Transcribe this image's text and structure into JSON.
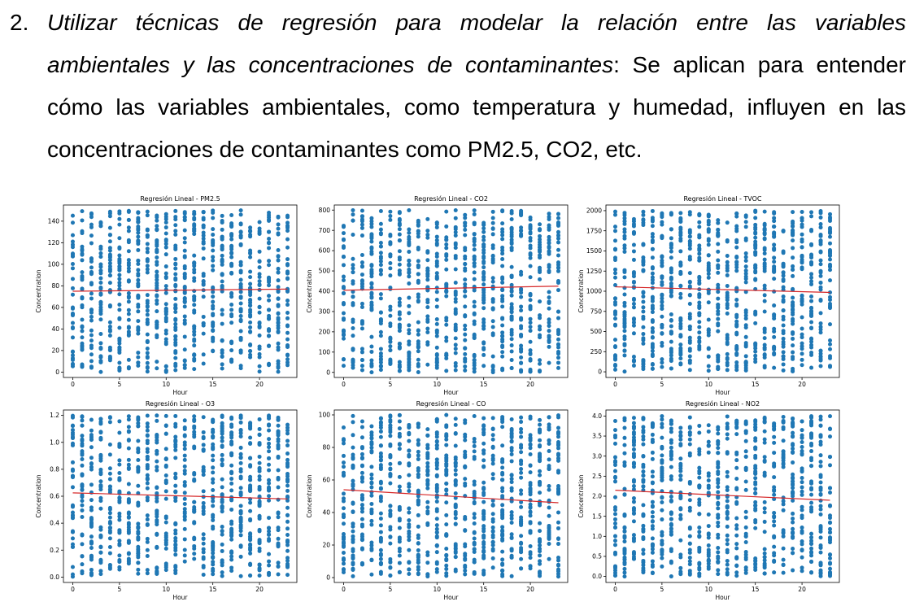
{
  "paragraph": {
    "number": "2.",
    "title": "Utilizar técnicas de regresión para modelar la relación entre las variables ambientales y las concentraciones de contaminantes",
    "body": ": Se aplican para entender cómo las variables ambientales, como temperatura y humedad, influyen en las concentraciones de contaminantes como PM2.5, CO2, etc."
  },
  "colors": {
    "points": "#1f77b4",
    "regression_line": "#d62728",
    "axes": "#000000"
  },
  "chart_data": [
    {
      "type": "scatter",
      "title": "Regresión Lineal - PM2.5",
      "xlabel": "Hour",
      "ylabel": "Concentration",
      "xlim": [
        -1,
        24
      ],
      "ylim": [
        -5,
        155
      ],
      "xticks": [
        0,
        5,
        10,
        15,
        20
      ],
      "yticks": [
        0,
        20,
        40,
        60,
        80,
        100,
        120,
        140
      ],
      "x_range": [
        0,
        23
      ],
      "y_range": [
        0,
        150
      ],
      "regression_line": {
        "x": [
          0,
          23
        ],
        "y": [
          75,
          77
        ]
      },
      "seed": 11
    },
    {
      "type": "scatter",
      "title": "Regresión Lineal - CO2",
      "xlabel": "Hour",
      "ylabel": "Concentration",
      "xlim": [
        -1,
        24
      ],
      "ylim": [
        -25,
        825
      ],
      "xticks": [
        0,
        5,
        10,
        15,
        20
      ],
      "yticks": [
        0,
        100,
        200,
        300,
        400,
        500,
        600,
        700,
        800
      ],
      "x_range": [
        0,
        23
      ],
      "y_range": [
        0,
        800
      ],
      "regression_line": {
        "x": [
          0,
          23
        ],
        "y": [
          405,
          425
        ]
      },
      "seed": 23
    },
    {
      "type": "scatter",
      "title": "Regresión Lineal - TVOC",
      "xlabel": "Hour",
      "ylabel": "Concentration",
      "xlim": [
        -1,
        24
      ],
      "ylim": [
        -70,
        2070
      ],
      "xticks": [
        0,
        5,
        10,
        15,
        20
      ],
      "yticks": [
        0,
        250,
        500,
        750,
        1000,
        1250,
        1500,
        1750,
        2000
      ],
      "x_range": [
        0,
        23
      ],
      "y_range": [
        0,
        2000
      ],
      "regression_line": {
        "x": [
          0,
          23
        ],
        "y": [
          1055,
          985
        ]
      },
      "seed": 37
    },
    {
      "type": "scatter",
      "title": "Regresión Lineal - O3",
      "xlabel": "Hour",
      "ylabel": "Concentration",
      "xlim": [
        -1,
        24
      ],
      "ylim": [
        -0.04,
        1.24
      ],
      "xticks": [
        0,
        5,
        10,
        15,
        20
      ],
      "yticks": [
        0.0,
        0.2,
        0.4,
        0.6,
        0.8,
        1.0,
        1.2
      ],
      "ytick_labels": [
        "0.0",
        "0.2",
        "0.4",
        "0.6",
        "0.8",
        "1.0",
        "1.2"
      ],
      "x_range": [
        0,
        23
      ],
      "y_range": [
        0,
        1.2
      ],
      "regression_line": {
        "x": [
          0,
          23
        ],
        "y": [
          0.625,
          0.58
        ]
      },
      "seed": 41
    },
    {
      "type": "scatter",
      "title": "Regresión Lineal - CO",
      "xlabel": "Hour",
      "ylabel": "Concentration",
      "xlim": [
        -1,
        24
      ],
      "ylim": [
        -3,
        103
      ],
      "xticks": [
        0,
        5,
        10,
        15,
        20
      ],
      "yticks": [
        0,
        20,
        40,
        60,
        80,
        100
      ],
      "x_range": [
        0,
        23
      ],
      "y_range": [
        0,
        100
      ],
      "regression_line": {
        "x": [
          0,
          23
        ],
        "y": [
          54,
          46
        ]
      },
      "seed": 53
    },
    {
      "type": "scatter",
      "title": "Regresión Lineal - NO2",
      "xlabel": "Hour",
      "ylabel": "Concentration",
      "xlim": [
        -1,
        24
      ],
      "ylim": [
        -0.15,
        4.15
      ],
      "xticks": [
        0,
        5,
        10,
        15,
        20
      ],
      "yticks": [
        0.0,
        0.5,
        1.0,
        1.5,
        2.0,
        2.5,
        3.0,
        3.5,
        4.0
      ],
      "ytick_labels": [
        "0.0",
        "0.5",
        "1.0",
        "1.5",
        "2.0",
        "2.5",
        "3.0",
        "3.5",
        "4.0"
      ],
      "x_range": [
        0,
        23
      ],
      "y_range": [
        0,
        4
      ],
      "regression_line": {
        "x": [
          0,
          23
        ],
        "y": [
          2.15,
          1.9
        ]
      },
      "seed": 67
    }
  ]
}
